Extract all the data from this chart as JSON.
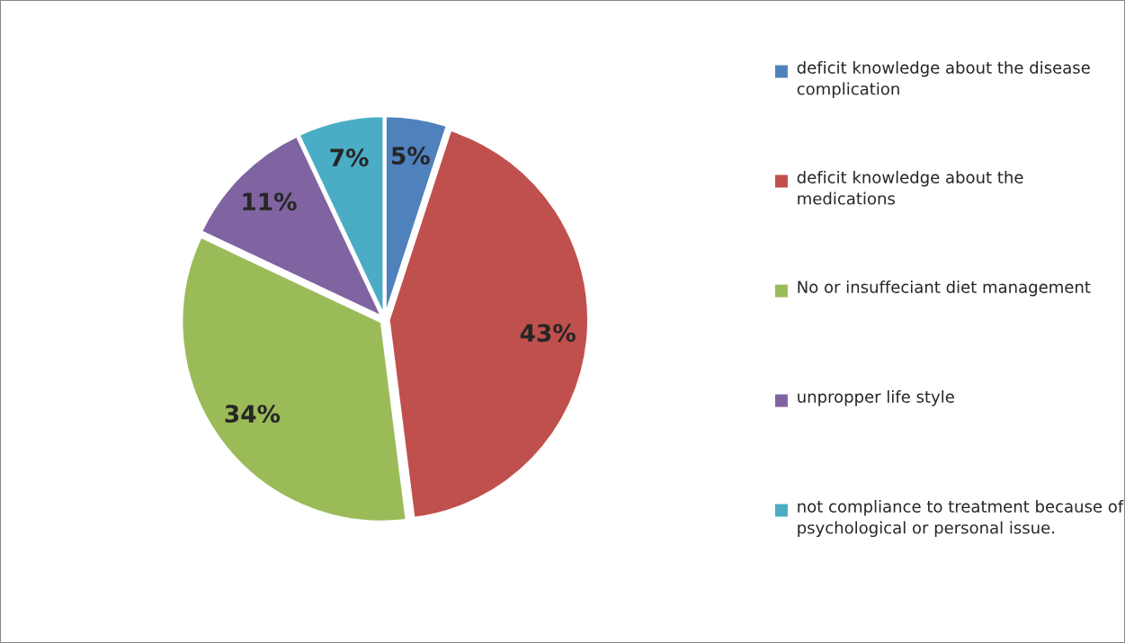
{
  "chart_data": {
    "type": "pie",
    "categories": [
      "deficit knowledge about the disease complication",
      "deficit knowledge about the medications",
      "No or insuffeciant diet management",
      "unpropper life style",
      "not compliance to treatment because of psychological or personal issue."
    ],
    "values": [
      5,
      43,
      34,
      11,
      7
    ],
    "colors": [
      "#4f81bd",
      "#c0504d",
      "#9bbb59",
      "#8064a2",
      "#4bacc6"
    ],
    "value_labels": [
      "5%",
      "43%",
      "34%",
      "11%",
      "7%"
    ],
    "legend": "right"
  }
}
